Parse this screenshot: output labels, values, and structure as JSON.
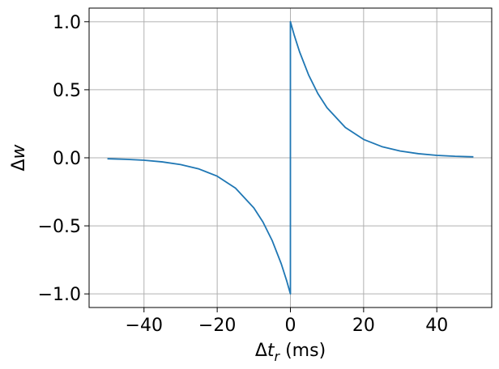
{
  "chart_data": {
    "type": "line",
    "title": "",
    "xlabel": {
      "prefix": "Δ",
      "variable": "t",
      "subscript": "r",
      "suffix": " (ms)"
    },
    "ylabel": {
      "prefix": "Δ",
      "variable": "w"
    },
    "xlim": [
      -55,
      55
    ],
    "ylim": [
      -1.1,
      1.1
    ],
    "xticks": [
      -40,
      -20,
      0,
      20,
      40
    ],
    "yticks": [
      -1.0,
      -0.5,
      0.0,
      0.5,
      1.0
    ],
    "xtick_labels": [
      "−40",
      "−20",
      "0",
      "20",
      "40"
    ],
    "ytick_labels": [
      "−1.0",
      "−0.5",
      "0.0",
      "0.5",
      "1.0"
    ],
    "grid": true,
    "series": [
      {
        "color": "#1f77b4",
        "x": [
          -50,
          -45,
          -40,
          -35,
          -30,
          -25,
          -20,
          -15,
          -10,
          -7.5,
          -5,
          -2.5,
          -1,
          -0.001,
          0.001,
          1,
          2.5,
          5,
          7.5,
          10,
          15,
          20,
          25,
          30,
          35,
          40,
          45,
          50
        ],
        "y": [
          -0.007,
          -0.011,
          -0.018,
          -0.03,
          -0.05,
          -0.082,
          -0.135,
          -0.223,
          -0.368,
          -0.472,
          -0.607,
          -0.779,
          -0.905,
          -1.0,
          1.0,
          0.905,
          0.779,
          0.607,
          0.472,
          0.368,
          0.223,
          0.135,
          0.082,
          0.05,
          0.03,
          0.018,
          0.011,
          0.007
        ]
      }
    ]
  }
}
